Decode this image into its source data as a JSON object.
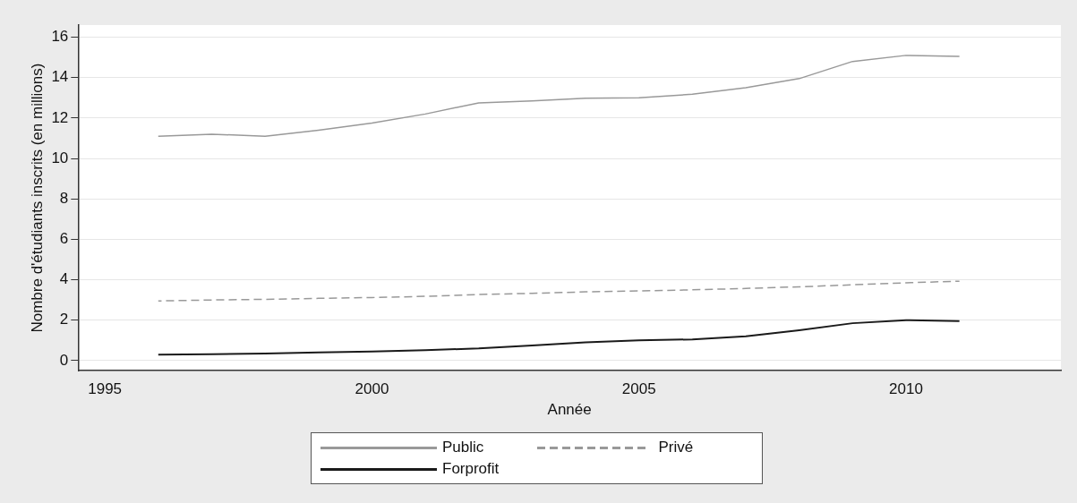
{
  "chart_data": {
    "type": "line",
    "xlabel": "Année",
    "ylabel": "Nombre d'étudiants inscrits (en millions)",
    "x": [
      1996,
      1997,
      1998,
      1999,
      2000,
      2001,
      2002,
      2003,
      2004,
      2005,
      2006,
      2007,
      2008,
      2009,
      2010,
      2011
    ],
    "xlim": [
      1994.5,
      2012.9
    ],
    "xticks": [
      1995,
      2000,
      2005,
      2010
    ],
    "ylim": [
      -0.5,
      16.6
    ],
    "yticks": [
      0,
      2,
      4,
      6,
      8,
      10,
      12,
      14,
      16
    ],
    "grid": "y",
    "legend": "bottom",
    "marker": "none",
    "series": [
      {
        "name": "Public",
        "color": "#999999",
        "line_style": "solid",
        "values": [
          11.1,
          11.2,
          11.1,
          11.4,
          11.75,
          12.2,
          12.75,
          12.85,
          12.98,
          13.0,
          13.18,
          13.5,
          13.95,
          14.8,
          15.1,
          15.05
        ]
      },
      {
        "name": "Privé",
        "color": "#999999",
        "line_style": "dashed",
        "values": [
          2.95,
          3.0,
          3.03,
          3.08,
          3.12,
          3.18,
          3.27,
          3.33,
          3.4,
          3.45,
          3.5,
          3.57,
          3.65,
          3.75,
          3.85,
          3.93
        ]
      },
      {
        "name": "Forprofit",
        "color": "#1a1a1a",
        "line_style": "solid",
        "values": [
          0.3,
          0.32,
          0.35,
          0.4,
          0.45,
          0.52,
          0.6,
          0.75,
          0.9,
          1.0,
          1.05,
          1.2,
          1.5,
          1.85,
          2.0,
          1.95
        ]
      }
    ]
  }
}
